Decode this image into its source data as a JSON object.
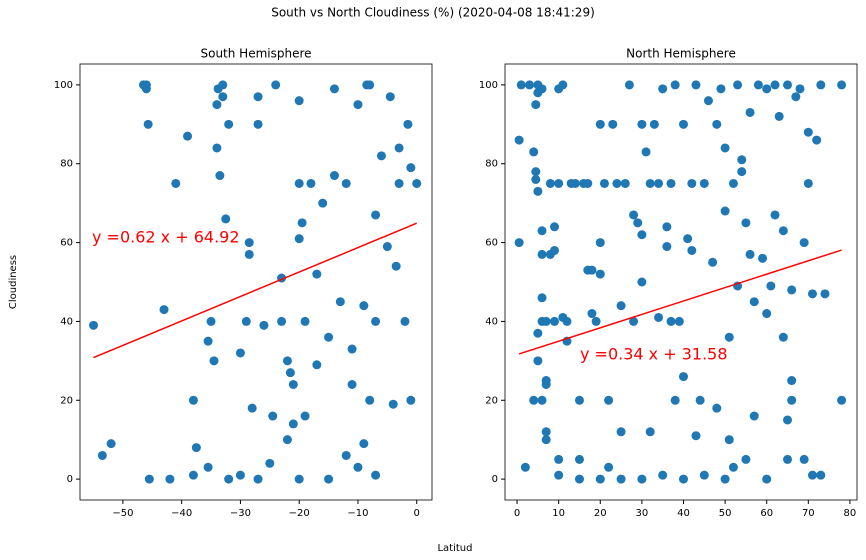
{
  "title": "South vs North Cloudiness (%) (2020-04-08 18:41:29)",
  "x_label": "Latitud",
  "y_label": "Cloudiness",
  "chart_data": [
    {
      "type": "scatter",
      "title": "South Hemisphere",
      "color": "#1f77b4",
      "x": [
        -55,
        -53.5,
        -52,
        -46.5,
        -46,
        -46,
        -45.7,
        -45.5,
        -43,
        -42,
        -41,
        -39,
        -38,
        -38,
        -37.5,
        -35.5,
        -35,
        -35.5,
        -34.5,
        -34,
        -34,
        -33.8,
        -33.5,
        -33,
        -33,
        -32.5,
        -32,
        -30,
        -29,
        -28.5,
        -28.5,
        -28,
        -27,
        -27,
        -26,
        -25,
        -24.5,
        -24,
        -23,
        -23,
        -22,
        -22,
        -21.5,
        -21,
        -21,
        -20,
        -20,
        -20,
        -19.5,
        -19,
        -19,
        -18,
        -17,
        -17,
        -16,
        -15,
        -14,
        -14,
        -13,
        -12,
        -11,
        -11,
        -10,
        -10,
        -9,
        -8,
        -8,
        -7,
        -7,
        -6,
        -5,
        -4.5,
        -4,
        -3.5,
        -3,
        -2,
        -1.5,
        -1,
        -1,
        0,
        -20,
        -27,
        -32,
        -30,
        -15,
        -7,
        -9,
        -12,
        -8.5,
        -3
      ],
      "values": [
        39,
        6,
        9,
        100,
        99,
        100,
        90,
        0,
        43,
        0,
        75,
        87,
        1,
        20,
        8,
        3,
        40,
        35,
        30,
        84,
        95,
        99,
        77,
        97,
        100,
        66,
        90,
        32,
        40,
        57,
        60,
        18,
        90,
        97,
        39,
        4,
        16,
        100,
        40,
        51,
        10,
        30,
        27,
        24,
        14,
        75,
        96,
        61,
        65,
        16,
        40,
        75,
        52,
        29,
        70,
        36,
        77,
        99,
        45,
        75,
        33,
        24,
        95,
        3,
        44,
        100,
        20,
        67,
        40,
        82,
        59,
        97,
        19,
        54,
        75,
        40,
        90,
        20,
        79,
        75,
        0,
        0,
        0,
        1,
        0,
        1,
        9,
        6,
        100,
        84
      ],
      "fit": {
        "x": [
          -55,
          0
        ],
        "values": [
          30.82,
          64.92
        ],
        "color": "red"
      },
      "annotation": "y =0.62 x  + 64.92",
      "xlim": [
        -57.3,
        2.6
      ],
      "ylim": [
        -5.3,
        105.3
      ],
      "xticks": [
        {
          "value": -50,
          "label": "−50"
        },
        {
          "value": -40,
          "label": "−40"
        },
        {
          "value": -30,
          "label": "−30"
        },
        {
          "value": -20,
          "label": "−20"
        },
        {
          "value": -10,
          "label": "−10"
        },
        0
      ],
      "yticks": [
        0,
        20,
        40,
        60,
        80,
        100
      ]
    },
    {
      "type": "scatter",
      "title": "North Hemisphere",
      "color": "#1f77b4",
      "x": [
        0.5,
        0.5,
        1,
        2,
        3,
        4,
        4.5,
        4.5,
        5,
        4.5,
        5,
        5,
        6,
        6,
        6,
        6,
        5,
        5,
        4,
        6,
        7,
        7,
        7,
        7,
        6,
        7,
        8,
        8,
        9,
        9,
        9,
        10,
        10,
        10,
        11,
        11,
        12,
        12,
        13,
        14,
        15,
        15,
        16,
        17,
        17,
        18,
        18,
        19,
        20,
        20,
        20,
        21,
        22,
        22,
        23,
        24,
        25,
        25,
        26,
        27,
        28,
        28,
        29,
        30,
        30,
        30,
        31,
        32,
        32,
        33,
        34,
        34,
        35,
        36,
        36,
        37,
        37,
        38,
        38,
        39,
        40,
        40,
        41,
        42,
        42,
        43,
        44,
        45,
        46,
        47,
        48,
        49,
        50,
        50,
        51,
        51,
        52,
        53,
        53,
        54,
        54,
        55,
        56,
        56,
        57,
        58,
        59,
        60,
        60,
        61,
        62,
        62,
        63,
        64,
        65,
        65,
        66,
        66,
        67,
        68,
        69,
        70,
        70,
        71,
        72,
        73,
        73,
        74,
        78,
        78,
        40,
        45,
        50,
        52,
        30,
        20,
        35,
        55,
        60,
        25,
        15,
        10,
        48,
        43,
        57,
        65,
        69,
        71,
        64,
        66
      ],
      "values": [
        86,
        60,
        100,
        3,
        100,
        83,
        78,
        76,
        73,
        95,
        98,
        100,
        99,
        63,
        57,
        46,
        37,
        30,
        20,
        20,
        24,
        25,
        12,
        10,
        40,
        40,
        75,
        57,
        58,
        64,
        40,
        1,
        99,
        75,
        100,
        41,
        35,
        40,
        75,
        75,
        20,
        5,
        75,
        75,
        53,
        53,
        42,
        40,
        60,
        90,
        52,
        75,
        3,
        20,
        90,
        75,
        44,
        12,
        75,
        100,
        67,
        40,
        65,
        62,
        90,
        50,
        83,
        75,
        12,
        90,
        41,
        75,
        99,
        59,
        64,
        40,
        75,
        20,
        100,
        40,
        26,
        90,
        61,
        58,
        75,
        100,
        20,
        75,
        96,
        55,
        90,
        99,
        84,
        68,
        36,
        10,
        75,
        49,
        100,
        81,
        78,
        65,
        93,
        57,
        45,
        100,
        56,
        42,
        99,
        49,
        100,
        67,
        92,
        63,
        100,
        15,
        25,
        48,
        97,
        99,
        60,
        88,
        75,
        47,
        86,
        100,
        1,
        47,
        100,
        20,
        0,
        1,
        0,
        3,
        0,
        0,
        1,
        5,
        0,
        0,
        0,
        5,
        18,
        11,
        16,
        5,
        5,
        1,
        36,
        20
      ],
      "fit": {
        "x": [
          0.5,
          78
        ],
        "values": [
          31.75,
          58.1
        ],
        "color": "red"
      },
      "annotation": "y =0.34 x  + 31.58",
      "xlim": [
        -2.9,
        81.7
      ],
      "ylim": [
        -5.3,
        105.3
      ],
      "xticks": [
        0,
        10,
        20,
        30,
        40,
        50,
        60,
        70,
        80
      ],
      "yticks": [
        0,
        20,
        40,
        60,
        80,
        100
      ]
    }
  ]
}
